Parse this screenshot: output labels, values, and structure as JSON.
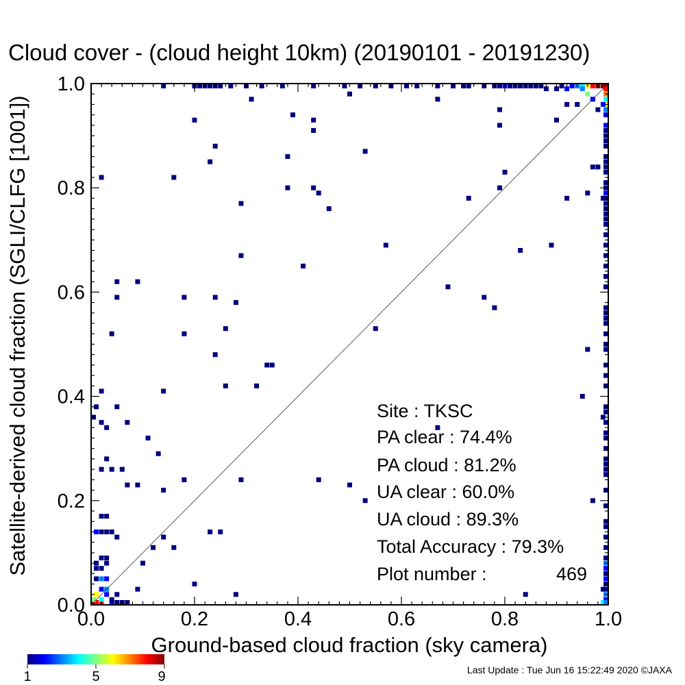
{
  "chart_data": {
    "type": "heatmap",
    "title": "Cloud cover - (cloud height 10km)  (20190101 - 20191230)",
    "xlabel": "Ground-based cloud fraction (sky camera)",
    "ylabel": "Satellite-derived cloud fraction (SGLI/CLFG [1001])",
    "xlim": [
      0.0,
      1.0
    ],
    "ylim": [
      0.0,
      1.0
    ],
    "xticks": [
      "0.0",
      "0.2",
      "0.4",
      "0.6",
      "0.8",
      "1.0"
    ],
    "yticks": [
      "0.0",
      "0.2",
      "0.4",
      "0.6",
      "0.8",
      "1.0"
    ],
    "reference_line": "y = x",
    "grid": false,
    "colorbar": {
      "ticks": [
        "1",
        "5",
        "9"
      ],
      "min": 1,
      "max": 9,
      "colors": [
        "#00007f",
        "#0000ff",
        "#007fff",
        "#00ffff",
        "#7fff7f",
        "#ffff00",
        "#ff7f00",
        "#ff0000",
        "#7f0000"
      ]
    },
    "points": [
      [
        0.0,
        0.0,
        9
      ],
      [
        0.01,
        0.0,
        8
      ],
      [
        0.02,
        0.0,
        8
      ],
      [
        0.0,
        0.01,
        5
      ],
      [
        0.01,
        0.02,
        6
      ],
      [
        0.02,
        0.01,
        4
      ],
      [
        0.03,
        0.03,
        3
      ],
      [
        0.02,
        0.03,
        2
      ],
      [
        0.03,
        0.02,
        2
      ],
      [
        0.04,
        0.0,
        2
      ],
      [
        0.05,
        0.0,
        1
      ],
      [
        0.06,
        0.0,
        1
      ],
      [
        0.07,
        0.0,
        1
      ],
      [
        0.02,
        0.05,
        3
      ],
      [
        0.03,
        0.05,
        2
      ],
      [
        0.01,
        0.07,
        1
      ],
      [
        0.02,
        0.07,
        1
      ],
      [
        0.03,
        0.08,
        1
      ],
      [
        0.01,
        0.08,
        1
      ],
      [
        0.02,
        0.09,
        1
      ],
      [
        0.03,
        0.09,
        1
      ],
      [
        0.04,
        0.01,
        1
      ],
      [
        0.05,
        0.02,
        1
      ],
      [
        0.01,
        0.05,
        1
      ],
      [
        0.99,
        1.0,
        9
      ],
      [
        0.98,
        1.0,
        9
      ],
      [
        0.97,
        1.0,
        8
      ],
      [
        1.0,
        1.0,
        9
      ],
      [
        1.0,
        0.99,
        8
      ],
      [
        1.0,
        0.98,
        7
      ],
      [
        0.96,
        1.0,
        6
      ],
      [
        0.95,
        1.0,
        4
      ],
      [
        0.94,
        1.0,
        3
      ],
      [
        0.93,
        1.0,
        2
      ],
      [
        0.92,
        0.99,
        2
      ],
      [
        0.95,
        0.99,
        3
      ],
      [
        0.96,
        0.98,
        5
      ],
      [
        0.97,
        0.97,
        2
      ],
      [
        1.0,
        0.97,
        4
      ],
      [
        1.0,
        0.96,
        6
      ],
      [
        1.0,
        0.95,
        3
      ],
      [
        1.0,
        0.94,
        2
      ],
      [
        0.99,
        0.96,
        2
      ],
      [
        0.98,
        0.95,
        1
      ],
      [
        0.0,
        0.36,
        1
      ],
      [
        0.01,
        0.38,
        1
      ],
      [
        0.02,
        0.35,
        1
      ],
      [
        0.03,
        0.34,
        1
      ],
      [
        0.02,
        0.41,
        1
      ],
      [
        0.03,
        0.28,
        1
      ],
      [
        0.04,
        0.26,
        1
      ],
      [
        0.02,
        0.26,
        1
      ],
      [
        0.06,
        0.26,
        1
      ],
      [
        0.05,
        0.38,
        1
      ],
      [
        0.07,
        0.35,
        1
      ],
      [
        0.04,
        0.52,
        1
      ],
      [
        0.05,
        0.59,
        1
      ],
      [
        0.05,
        0.62,
        1
      ],
      [
        0.09,
        0.62,
        1
      ],
      [
        0.02,
        0.82,
        1
      ],
      [
        0.07,
        0.23,
        1
      ],
      [
        0.09,
        0.23,
        1
      ],
      [
        0.11,
        0.32,
        1
      ],
      [
        0.13,
        0.29,
        1
      ],
      [
        0.14,
        0.22,
        1
      ],
      [
        0.14,
        0.13,
        1
      ],
      [
        0.12,
        0.11,
        1
      ],
      [
        0.16,
        0.11,
        1
      ],
      [
        0.1,
        0.08,
        1
      ],
      [
        0.09,
        0.03,
        1
      ],
      [
        0.02,
        0.17,
        1
      ],
      [
        0.03,
        0.17,
        1
      ],
      [
        0.01,
        0.14,
        2
      ],
      [
        0.02,
        0.14,
        1
      ],
      [
        0.03,
        0.14,
        1
      ],
      [
        0.04,
        0.14,
        1
      ],
      [
        0.05,
        0.13,
        1
      ],
      [
        0.18,
        0.24,
        1
      ],
      [
        0.18,
        0.52,
        1
      ],
      [
        0.18,
        0.59,
        1
      ],
      [
        0.14,
        0.41,
        1
      ],
      [
        0.16,
        0.82,
        1
      ],
      [
        0.2,
        0.04,
        1
      ],
      [
        0.23,
        0.14,
        1
      ],
      [
        0.25,
        0.14,
        1
      ],
      [
        0.28,
        0.02,
        1
      ],
      [
        0.29,
        0.24,
        1
      ],
      [
        0.24,
        0.48,
        1
      ],
      [
        0.26,
        0.42,
        1
      ],
      [
        0.26,
        0.53,
        1
      ],
      [
        0.24,
        0.59,
        1
      ],
      [
        0.28,
        0.58,
        1
      ],
      [
        0.29,
        0.67,
        1
      ],
      [
        0.29,
        0.77,
        1
      ],
      [
        0.2,
        0.93,
        1
      ],
      [
        0.23,
        0.85,
        1
      ],
      [
        0.24,
        0.88,
        1
      ],
      [
        0.31,
        0.97,
        1
      ],
      [
        0.32,
        0.42,
        1
      ],
      [
        0.34,
        0.46,
        1
      ],
      [
        0.35,
        0.46,
        1
      ],
      [
        0.38,
        0.8,
        1
      ],
      [
        0.38,
        0.86,
        1
      ],
      [
        0.39,
        0.94,
        1
      ],
      [
        0.41,
        0.65,
        1
      ],
      [
        0.43,
        0.8,
        1
      ],
      [
        0.44,
        0.79,
        1
      ],
      [
        0.46,
        0.76,
        1
      ],
      [
        0.43,
        0.91,
        1
      ],
      [
        0.43,
        0.93,
        1
      ],
      [
        0.44,
        0.24,
        1
      ],
      [
        0.5,
        0.23,
        1
      ],
      [
        0.53,
        0.2,
        1
      ],
      [
        0.53,
        0.87,
        1
      ],
      [
        0.5,
        0.98,
        1
      ],
      [
        0.55,
        0.53,
        1
      ],
      [
        0.57,
        0.69,
        1
      ],
      [
        0.67,
        0.97,
        1
      ],
      [
        0.67,
        0.34,
        1
      ],
      [
        0.69,
        0.61,
        1
      ],
      [
        0.73,
        0.78,
        1
      ],
      [
        0.76,
        0.59,
        1
      ],
      [
        0.78,
        0.57,
        1
      ],
      [
        0.79,
        0.8,
        1
      ],
      [
        0.8,
        0.83,
        1
      ],
      [
        0.79,
        0.92,
        1
      ],
      [
        0.79,
        0.95,
        1
      ],
      [
        0.83,
        0.68,
        1
      ],
      [
        0.84,
        0.02,
        1
      ],
      [
        0.89,
        0.69,
        1
      ],
      [
        0.9,
        0.93,
        1
      ],
      [
        0.92,
        0.78,
        1
      ],
      [
        0.92,
        0.96,
        1
      ],
      [
        0.94,
        0.96,
        1
      ],
      [
        0.95,
        0.4,
        1
      ],
      [
        0.96,
        0.49,
        1
      ],
      [
        0.96,
        0.79,
        1
      ],
      [
        0.97,
        0.2,
        1
      ],
      [
        0.97,
        0.84,
        1
      ],
      [
        0.98,
        0.84,
        1
      ],
      [
        0.2,
        1.0,
        1
      ],
      [
        0.21,
        1.0,
        1
      ],
      [
        0.22,
        1.0,
        1
      ],
      [
        0.23,
        1.0,
        1
      ],
      [
        0.24,
        1.0,
        1
      ],
      [
        0.25,
        1.0,
        1
      ],
      [
        0.14,
        1.0,
        1
      ],
      [
        0.27,
        1.0,
        1
      ],
      [
        0.3,
        1.0,
        1
      ],
      [
        0.33,
        1.0,
        1
      ],
      [
        0.37,
        1.0,
        1
      ],
      [
        0.43,
        1.0,
        1
      ],
      [
        0.49,
        1.0,
        1
      ],
      [
        0.52,
        1.0,
        1
      ],
      [
        0.55,
        1.0,
        1
      ],
      [
        0.58,
        1.0,
        1
      ],
      [
        0.61,
        1.0,
        1
      ],
      [
        0.63,
        1.0,
        1
      ],
      [
        0.67,
        1.0,
        1
      ],
      [
        0.7,
        1.0,
        1
      ],
      [
        0.72,
        1.0,
        1
      ],
      [
        0.73,
        1.0,
        1
      ],
      [
        0.76,
        1.0,
        1
      ],
      [
        0.78,
        1.0,
        1
      ],
      [
        0.79,
        1.0,
        1
      ],
      [
        0.8,
        1.0,
        2
      ],
      [
        0.81,
        1.0,
        1
      ],
      [
        0.82,
        1.0,
        1
      ],
      [
        0.83,
        1.0,
        1
      ],
      [
        0.84,
        1.0,
        1
      ],
      [
        0.85,
        1.0,
        1
      ],
      [
        0.86,
        1.0,
        1
      ],
      [
        0.87,
        1.0,
        1
      ],
      [
        0.88,
        0.99,
        1
      ],
      [
        0.9,
        0.99,
        1
      ],
      [
        0.91,
        1.0,
        1
      ],
      [
        1.0,
        0.92,
        2
      ],
      [
        1.0,
        0.91,
        1
      ],
      [
        1.0,
        0.9,
        1
      ],
      [
        1.0,
        0.89,
        1
      ],
      [
        1.0,
        0.88,
        1
      ],
      [
        1.0,
        0.86,
        1
      ],
      [
        1.0,
        0.85,
        1
      ],
      [
        1.0,
        0.84,
        1
      ],
      [
        1.0,
        0.83,
        1
      ],
      [
        1.0,
        0.81,
        1
      ],
      [
        1.0,
        0.8,
        1
      ],
      [
        1.0,
        0.79,
        2
      ],
      [
        1.0,
        0.78,
        1
      ],
      [
        1.0,
        0.77,
        1
      ],
      [
        0.99,
        0.78,
        1
      ],
      [
        1.0,
        0.76,
        1
      ],
      [
        1.0,
        0.75,
        1
      ],
      [
        1.0,
        0.74,
        1
      ],
      [
        1.0,
        0.73,
        1
      ],
      [
        1.0,
        0.71,
        1
      ],
      [
        1.0,
        0.69,
        1
      ],
      [
        1.0,
        0.67,
        1
      ],
      [
        1.0,
        0.65,
        1
      ],
      [
        1.0,
        0.63,
        1
      ],
      [
        1.0,
        0.61,
        1
      ],
      [
        1.0,
        0.57,
        1
      ],
      [
        1.0,
        0.56,
        1
      ],
      [
        1.0,
        0.55,
        1
      ],
      [
        1.0,
        0.54,
        1
      ],
      [
        1.0,
        0.52,
        1
      ],
      [
        1.0,
        0.5,
        1
      ],
      [
        1.0,
        0.49,
        1
      ],
      [
        1.0,
        0.46,
        1
      ],
      [
        1.0,
        0.44,
        1
      ],
      [
        1.0,
        0.42,
        1
      ],
      [
        1.0,
        0.38,
        1
      ],
      [
        1.0,
        0.37,
        1
      ],
      [
        0.99,
        0.36,
        1
      ],
      [
        1.0,
        0.35,
        1
      ],
      [
        1.0,
        0.33,
        1
      ],
      [
        1.0,
        0.32,
        1
      ],
      [
        1.0,
        0.3,
        1
      ],
      [
        1.0,
        0.28,
        1
      ],
      [
        1.0,
        0.27,
        1
      ],
      [
        1.0,
        0.26,
        1
      ],
      [
        1.0,
        0.25,
        1
      ],
      [
        1.0,
        0.22,
        1
      ],
      [
        1.0,
        0.19,
        1
      ],
      [
        1.0,
        0.16,
        1
      ],
      [
        1.0,
        0.15,
        1
      ],
      [
        1.0,
        0.13,
        1
      ],
      [
        1.0,
        0.11,
        1
      ],
      [
        1.0,
        0.09,
        1
      ],
      [
        1.0,
        0.08,
        3
      ],
      [
        1.0,
        0.07,
        2
      ],
      [
        1.0,
        0.06,
        1
      ],
      [
        1.0,
        0.05,
        2
      ],
      [
        1.0,
        0.04,
        1
      ],
      [
        1.0,
        0.03,
        1
      ],
      [
        0.99,
        0.03,
        1
      ],
      [
        1.0,
        0.02,
        3
      ],
      [
        1.0,
        0.01,
        2
      ],
      [
        0.99,
        0.0,
        4
      ],
      [
        1.0,
        0.0,
        3
      ]
    ],
    "stats": {
      "site": "Site : TKSC",
      "pa_clear": "PA clear :  74.4%",
      "pa_cloud": "PA cloud :  81.2%",
      "ua_clear": "UA clear :  60.0%",
      "ua_cloud": "UA cloud :  89.3%",
      "total_accuracy": "Total Accuracy :  79.3%",
      "plot_number_label": "Plot number :",
      "plot_number_value": "469"
    }
  },
  "footer": {
    "last_update": "Last Update : Tue Jun 16 15:22:49 2020  ©JAXA"
  }
}
